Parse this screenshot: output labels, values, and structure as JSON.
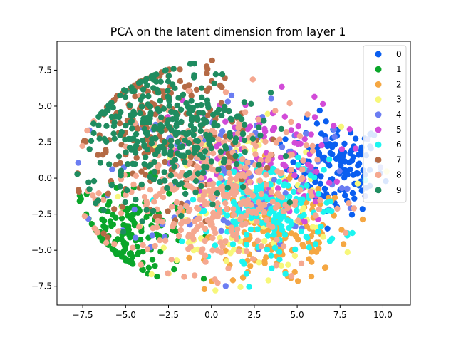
{
  "chart_data": {
    "type": "scatter",
    "title": "PCA on the latent dimension from layer 1",
    "xlabel": "",
    "ylabel": "",
    "xlim": [
      -9.0,
      11.6
    ],
    "ylim": [
      -8.8,
      9.5
    ],
    "xticks": [
      -7.5,
      -5.0,
      -2.5,
      0.0,
      2.5,
      5.0,
      7.5,
      10.0
    ],
    "xtick_labels": [
      "−7.5",
      "−5.0",
      "−2.5",
      "0.0",
      "2.5",
      "5.0",
      "7.5",
      "10.0"
    ],
    "yticks": [
      -7.5,
      -5.0,
      -2.5,
      0.0,
      2.5,
      5.0,
      7.5
    ],
    "ytick_labels": [
      "−7.5",
      "−5.0",
      "−2.5",
      "0.0",
      "2.5",
      "5.0",
      "7.5"
    ],
    "grid": false,
    "legend_position": "top-right",
    "series": [
      {
        "name": "0",
        "color": "#0a5ef0",
        "center": [
          7.2,
          0.7
        ],
        "spread": [
          1.4,
          1.6
        ],
        "count": 140
      },
      {
        "name": "1",
        "color": "#0aa62a",
        "center": [
          -4.8,
          -3.6
        ],
        "spread": [
          1.6,
          1.7
        ],
        "count": 160
      },
      {
        "name": "2",
        "color": "#f5a742",
        "center": [
          4.0,
          -4.0
        ],
        "spread": [
          2.0,
          1.7
        ],
        "count": 170
      },
      {
        "name": "3",
        "color": "#f7f77a",
        "center": [
          1.5,
          -1.5
        ],
        "spread": [
          3.0,
          2.5
        ],
        "count": 120
      },
      {
        "name": "4",
        "color": "#6b7df2",
        "center": [
          1.5,
          0.5
        ],
        "spread": [
          3.5,
          2.8
        ],
        "count": 140
      },
      {
        "name": "5",
        "color": "#d24bd8",
        "center": [
          2.5,
          1.2
        ],
        "spread": [
          2.5,
          2.2
        ],
        "count": 120
      },
      {
        "name": "6",
        "color": "#1cf5f0",
        "center": [
          3.2,
          -2.2
        ],
        "spread": [
          2.2,
          1.7
        ],
        "count": 200
      },
      {
        "name": "7",
        "color": "#b56a45",
        "center": [
          -3.0,
          3.5
        ],
        "spread": [
          2.4,
          2.6
        ],
        "count": 220
      },
      {
        "name": "8",
        "color": "#f5a890",
        "center": [
          0.0,
          -1.0
        ],
        "spread": [
          2.8,
          2.7
        ],
        "count": 380
      },
      {
        "name": "9",
        "color": "#1f8c60",
        "center": [
          -2.5,
          3.5
        ],
        "spread": [
          2.5,
          2.4
        ],
        "count": 340
      }
    ]
  }
}
